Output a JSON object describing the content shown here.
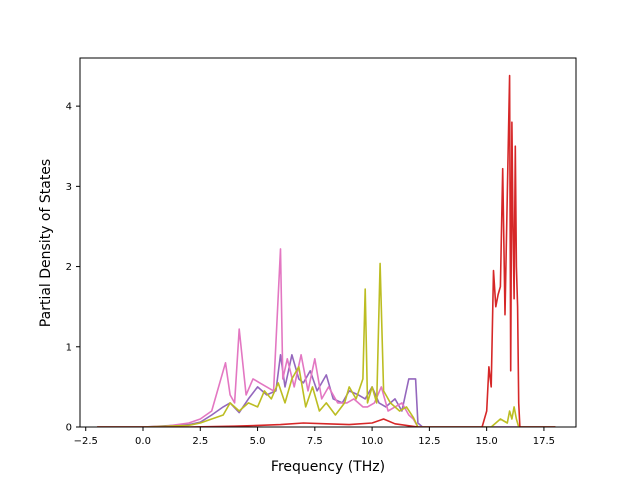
{
  "chart_data": {
    "type": "line",
    "title": "",
    "xlabel": "Frequency (THz)",
    "ylabel": "Partial Density of States",
    "xlim": [
      -2.75,
      18.9
    ],
    "ylim": [
      0,
      4.6
    ],
    "xticks": [
      -2.5,
      0.0,
      2.5,
      5.0,
      7.5,
      10.0,
      12.5,
      15.0,
      17.5
    ],
    "xtick_labels": [
      "−2.5",
      "0.0",
      "2.5",
      "5.0",
      "7.5",
      "10.0",
      "12.5",
      "15.0",
      "17.5"
    ],
    "yticks": [
      0,
      1,
      2,
      3,
      4
    ],
    "ytick_labels": [
      "0",
      "1",
      "2",
      "3",
      "4"
    ],
    "grid": false,
    "legend": "none",
    "series": [
      {
        "color": "#9467bd",
        "x": [
          -2,
          0,
          2,
          2.5,
          3,
          3.5,
          3.8,
          4.2,
          4.6,
          5.0,
          5.4,
          5.8,
          6.0,
          6.2,
          6.5,
          6.8,
          7.0,
          7.3,
          7.6,
          8.0,
          8.3,
          8.7,
          9.0,
          9.4,
          9.7,
          10.0,
          10.3,
          10.6,
          11.0,
          11.3,
          11.6,
          11.9,
          12.0,
          12.2,
          15,
          18
        ],
        "y": [
          0,
          0,
          0.03,
          0.06,
          0.15,
          0.25,
          0.3,
          0.18,
          0.35,
          0.5,
          0.4,
          0.45,
          0.9,
          0.5,
          0.9,
          0.6,
          0.55,
          0.7,
          0.45,
          0.65,
          0.35,
          0.3,
          0.45,
          0.4,
          0.35,
          0.5,
          0.3,
          0.25,
          0.35,
          0.2,
          0.6,
          0.6,
          0.05,
          0,
          0,
          0
        ]
      },
      {
        "color": "#e377c2",
        "x": [
          -2,
          0,
          1,
          2,
          2.5,
          3,
          3.5,
          3.6,
          3.8,
          4.0,
          4.2,
          4.5,
          4.8,
          5.1,
          5.4,
          5.7,
          6.0,
          6.1,
          6.3,
          6.6,
          6.9,
          7.2,
          7.5,
          7.8,
          8.1,
          8.5,
          8.9,
          9.2,
          9.6,
          9.8,
          10.1,
          10.4,
          10.7,
          11.0,
          11.3,
          11.6,
          11.8,
          12.0,
          15,
          18
        ],
        "y": [
          0,
          0,
          0.01,
          0.05,
          0.1,
          0.2,
          0.7,
          0.8,
          0.4,
          0.3,
          1.22,
          0.4,
          0.6,
          0.55,
          0.5,
          0.45,
          2.22,
          0.6,
          0.85,
          0.5,
          0.9,
          0.45,
          0.85,
          0.35,
          0.5,
          0.3,
          0.3,
          0.35,
          0.25,
          0.25,
          0.3,
          0.5,
          0.2,
          0.25,
          0.3,
          0.15,
          0.1,
          0,
          0,
          0
        ]
      },
      {
        "color": "#bcbd22",
        "x": [
          -2,
          0,
          2,
          2.5,
          3,
          3.5,
          3.8,
          4.2,
          4.6,
          5.0,
          5.3,
          5.6,
          5.9,
          6.2,
          6.5,
          6.8,
          7.1,
          7.4,
          7.7,
          8.0,
          8.4,
          8.8,
          9.0,
          9.3,
          9.6,
          9.7,
          9.8,
          10.0,
          10.2,
          10.35,
          10.5,
          10.8,
          11.2,
          11.5,
          11.8,
          12.0,
          15.2,
          15.4,
          15.6,
          15.9,
          16.0,
          16.1,
          16.2,
          16.3,
          16.4,
          16.6,
          18
        ],
        "y": [
          0,
          0,
          0.02,
          0.05,
          0.1,
          0.15,
          0.3,
          0.2,
          0.3,
          0.25,
          0.45,
          0.35,
          0.55,
          0.3,
          0.6,
          0.75,
          0.25,
          0.5,
          0.2,
          0.3,
          0.15,
          0.3,
          0.5,
          0.35,
          0.6,
          1.72,
          0.3,
          0.5,
          0.3,
          2.04,
          0.45,
          0.3,
          0.2,
          0.25,
          0.12,
          0,
          0,
          0.05,
          0.1,
          0.05,
          0.2,
          0.1,
          0.25,
          0.1,
          0,
          0,
          0
        ]
      },
      {
        "color": "#d62728",
        "x": [
          -2,
          0,
          2,
          4,
          5,
          6,
          7,
          8,
          9,
          10,
          10.5,
          11,
          12,
          14.8,
          15.0,
          15.1,
          15.2,
          15.3,
          15.4,
          15.5,
          15.6,
          15.7,
          15.8,
          15.9,
          16.0,
          16.05,
          16.1,
          16.15,
          16.2,
          16.25,
          16.3,
          16.35,
          16.4,
          16.45,
          16.6,
          18
        ],
        "y": [
          0,
          0,
          0,
          0.01,
          0.02,
          0.03,
          0.05,
          0.04,
          0.03,
          0.05,
          0.1,
          0.04,
          0,
          0,
          0.2,
          0.75,
          0.5,
          1.95,
          1.5,
          1.65,
          1.75,
          3.22,
          1.4,
          2.9,
          4.38,
          0.7,
          3.8,
          2.5,
          1.6,
          3.5,
          2.0,
          1.5,
          0.3,
          0,
          0,
          0
        ]
      }
    ]
  }
}
